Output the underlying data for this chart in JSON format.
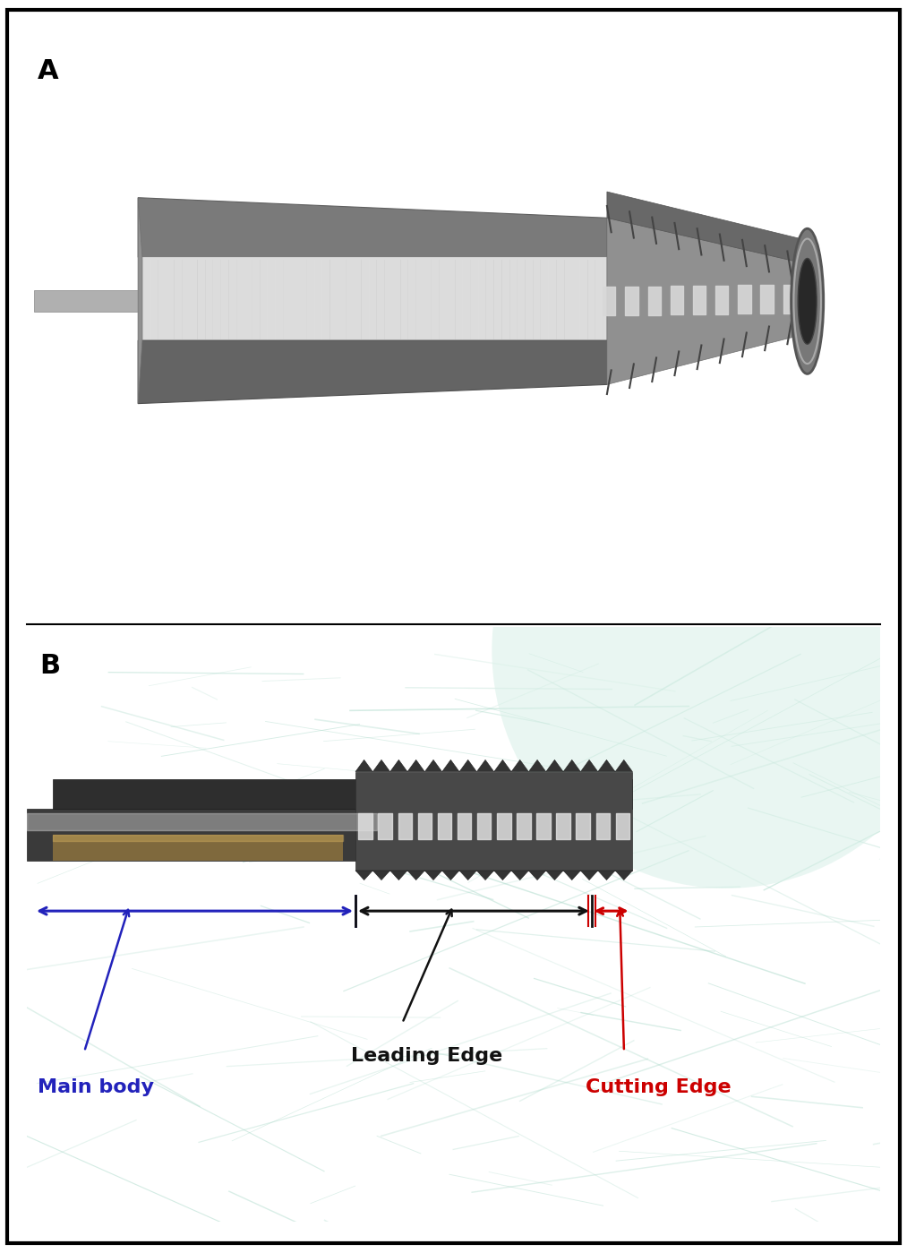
{
  "panel_a_label": "A",
  "panel_b_label": "B",
  "background_color_a": "#ffffff",
  "background_color_b": "#8ecfbe",
  "border_color": "#000000",
  "label_fontsize": 22,
  "annotation_fontsize": 16,
  "main_body_label": "Main body",
  "main_body_color": "#2222bb",
  "leading_edge_label": "Leading Edge",
  "leading_edge_color": "#111111",
  "cutting_edge_label": "Cutting Edge",
  "cutting_edge_color": "#cc0000",
  "fig_width": 10.13,
  "fig_height": 13.99
}
